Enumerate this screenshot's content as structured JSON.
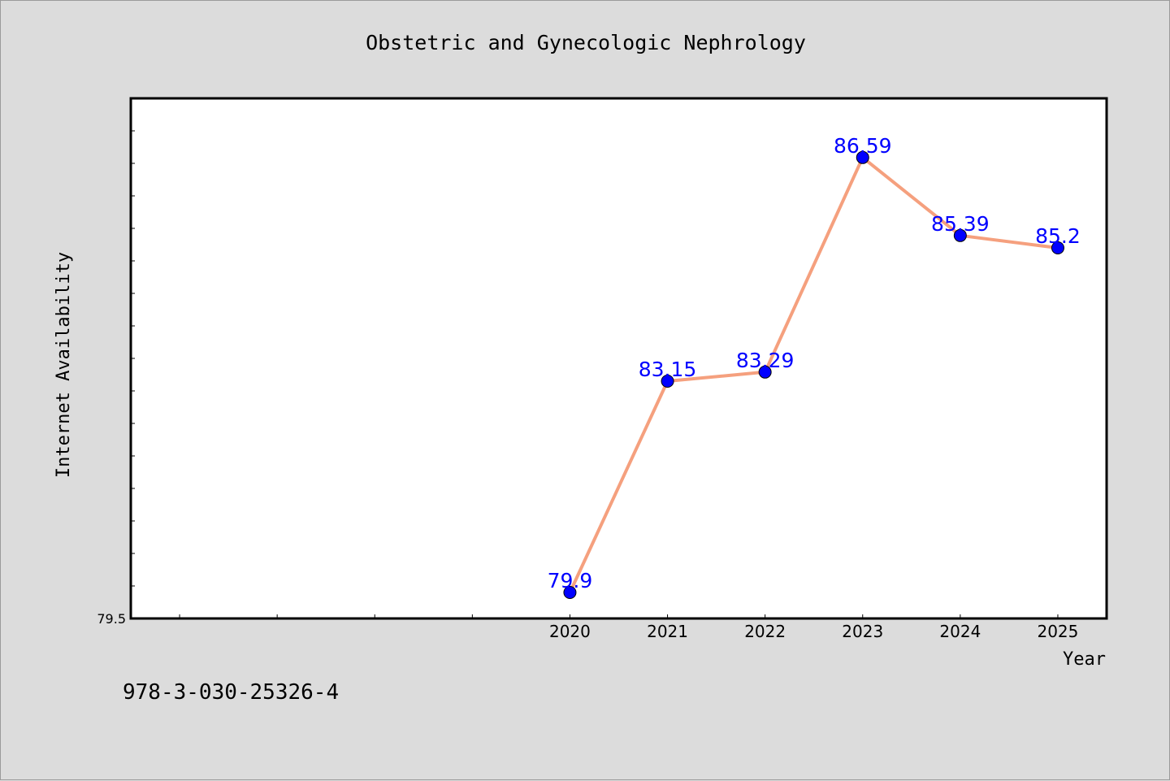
{
  "colors": {
    "background": "#dcdcdc",
    "plot_background": "#ffffff",
    "line": "#f5a07e",
    "marker": "#0000ff",
    "data_label": "#0000ff"
  },
  "footer": {
    "code": "978-3-030-25326-4"
  },
  "chart_data": {
    "type": "line",
    "title": "Obstetric and Gynecologic Nephrology",
    "xlabel": "Year",
    "ylabel": "Internet Availability",
    "x": [
      2020,
      2021,
      2022,
      2023,
      2024,
      2025
    ],
    "values": [
      79.9,
      83.15,
      83.29,
      86.59,
      85.39,
      85.2
    ],
    "data_labels": [
      "79.9",
      "83.15",
      "83.29",
      "86.59",
      "85.39",
      "85.2"
    ],
    "x_tick_labels": [
      "2020",
      "2021",
      "2022",
      "2023",
      "2024",
      "2025"
    ],
    "xlim": [
      2015.5,
      2025.5
    ],
    "ylim": [
      79.5,
      87.5
    ],
    "y_tick_labels": [
      "79.5"
    ],
    "grid": false,
    "legend": "none"
  }
}
